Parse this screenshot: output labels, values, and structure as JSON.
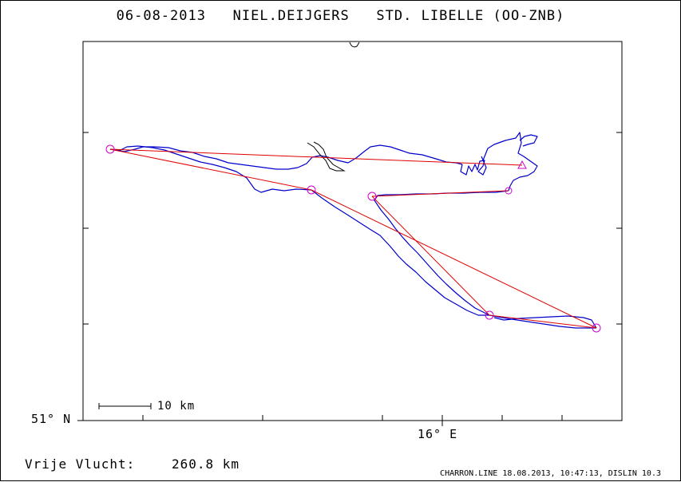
{
  "title": "06-08-2013   NIEL.DEIJGERS   STD. LIBELLE (OO-ZNB)",
  "axes": {
    "latitude_label": "51° N",
    "longitude_label": "16° E"
  },
  "scale_bar": {
    "label": "10 km"
  },
  "distance": {
    "label": "Vrije Vlucht:",
    "value": "260.8 km"
  },
  "footer": "CHARRON.LINE 18.08.2013, 10:47:13, DISLIN 10.3",
  "colors": {
    "track": "#0000cc",
    "route": "#e00000",
    "turnpoint": "#cc00cc",
    "frame": "#000000",
    "extra_track": "#000000"
  },
  "markers": {
    "turnpoint_shape": "circle",
    "finish_shape": "triangle"
  }
}
